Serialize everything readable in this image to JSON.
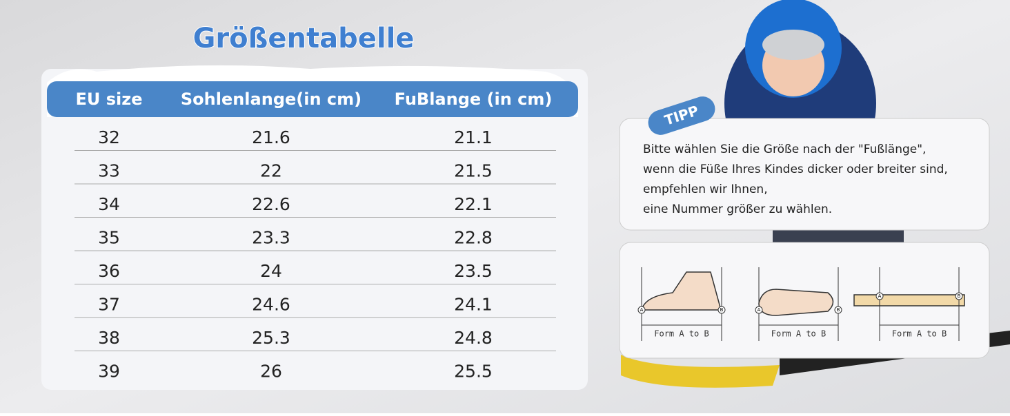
{
  "header": {
    "title": "Größentabelle"
  },
  "table": {
    "columns": [
      "EU size",
      "Sohlenlange(in cm)",
      "FuBlange (in cm)"
    ],
    "rows": [
      [
        32,
        21.6,
        21.1
      ],
      [
        33,
        22,
        21.5
      ],
      [
        34,
        22.6,
        22.1
      ],
      [
        35,
        23.3,
        22.8
      ],
      [
        36,
        24,
        23.5
      ],
      [
        37,
        24.6,
        24.1
      ],
      [
        38,
        25.3,
        24.8
      ],
      [
        39,
        26,
        25.5
      ]
    ]
  },
  "tip": {
    "label": "TIPP",
    "lines": [
      "Bitte wählen Sie die Größe nach der \"Fußlänge\",",
      "wenn die Füße Ihres Kindes dicker oder breiter sind,",
      "empfehlen wir Ihnen,",
      "eine Nummer größer zu wählen."
    ]
  },
  "diagrams": [
    {
      "start": "A",
      "end": "B",
      "caption": "Form A to B"
    },
    {
      "start": "A",
      "end": "B",
      "caption": "Form A to B"
    },
    {
      "start": "A",
      "end": "B",
      "caption": "Form A to B"
    }
  ]
}
